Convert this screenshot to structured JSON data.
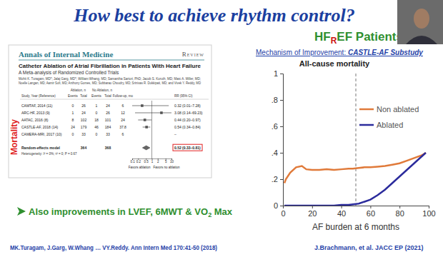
{
  "slide": {
    "title": "How best to achieve rhythm control?",
    "subtitle_parts": [
      "HF",
      "R",
      "EF Patients"
    ],
    "article": {
      "journal": "Annals of Internal Medicine",
      "section": "Review",
      "title": "Catheter Ablation of Atrial Fibrillation in Patients With Heart Failure",
      "subtitle": "A Meta-analysis of Randomized Controlled Trials",
      "authors": [
        "Mohit K. Turagam, MD*; Jalaj Garg, MD*; William Whang, MD; Samantha Sartori, PhD; Jacob S. Koruth, MD; Marc A. Miller, MD;",
        "Noelle Langan, MD; Aamir Sofi, MD; Anthony Gomes, MD; Subbarao Choudry, MD; Srinivas R. Dukkipati, MD; and Vivek Y. Reddy, MD"
      ]
    },
    "bullet_parts": [
      "Also improvements in LVEF, 6MWT & VO",
      "2",
      " Max"
    ],
    "citations": [
      "MK.Turagam, J.Garg, W.Whang … VY.Reddy. Ann Intern Med 170:41-50 (2018)",
      "J.Brachmann, et al. JACC EP (2021)"
    ]
  },
  "chart_data": [
    {
      "type": "forest",
      "side_label": "Mortality",
      "header_top": [
        "Ablation, n",
        "No Ablation, n"
      ],
      "header_sub": [
        "Study, Year (Reference)",
        "Events",
        "Total",
        "Events",
        "Total",
        "Follow-up, mo",
        "RR (95% CI)"
      ],
      "categories": [
        "CAMTAF, 2014 (11)",
        "ARC-HF, 2013 (9)",
        "AATAC, 2016 (8)",
        "CASTLE-AF, 2018 (14)",
        "CAMERA-MRI, 2017 (10)"
      ],
      "values": [
        0.32,
        3.08,
        0.44,
        0.54,
        null
      ],
      "ci_low": [
        0.01,
        0.14,
        0.2,
        0.34,
        null
      ],
      "ci_high": [
        7.28,
        69.23,
        0.97,
        0.84,
        null
      ],
      "rows": [
        [
          "0",
          "26",
          "1",
          "24",
          "6",
          "0.32 (0.01–7.28)"
        ],
        [
          "1",
          "24",
          "0",
          "26",
          "12",
          "3.08 (0.14–69.23)"
        ],
        [
          "8",
          "102",
          "18",
          "101",
          "24",
          "0.44 (0.20–0.97)"
        ],
        [
          "24",
          "179",
          "46",
          "184",
          "37.8",
          "0.54 (0.34–0.84)"
        ],
        [
          "0",
          "33",
          "0",
          "33",
          "6",
          "–"
        ]
      ],
      "pooled": {
        "label": "Random-effects model",
        "value": 0.52,
        "ci_low": 0.33,
        "ci_high": 0.81,
        "row": [
          null,
          "364",
          null,
          "368",
          null,
          "0.52 (0.33–0.81)"
        ]
      },
      "heterogeneity": "Heterogeneity: I² = 0%; τ² = 0; P = 0.67",
      "log": "x",
      "xlim": [
        0.1,
        10
      ],
      "xticks": [
        0.1,
        0.2,
        0.5,
        1,
        2,
        5,
        10
      ],
      "reference_x": 1,
      "x_labels": [
        "Favors ablation",
        "Favors no ablation"
      ]
    },
    {
      "type": "line",
      "heading_parts": [
        "Mechanism of Improvement: ",
        "CASTLE-AF Substudy"
      ],
      "title": "All-cause mortality",
      "x_label": "AF burden at 6 months",
      "x": [
        1,
        2,
        5,
        9,
        13,
        16,
        20,
        25,
        30,
        35,
        40,
        45,
        48,
        52,
        56,
        60,
        65,
        70,
        75,
        80,
        85,
        90,
        95,
        98
      ],
      "series": [
        {
          "name": "Non ablated",
          "color": "#e07a3a",
          "values": [
            0.17,
            0.2,
            0.25,
            0.29,
            0.3,
            0.275,
            0.27,
            0.27,
            0.275,
            0.27,
            0.275,
            0.28,
            0.28,
            0.285,
            0.29,
            0.29,
            0.295,
            0.3,
            0.31,
            0.32,
            0.34,
            0.36,
            0.38,
            0.4
          ]
        },
        {
          "name": "Ablated",
          "color": "#2b2b9c",
          "values": [
            0,
            0,
            0,
            0,
            0,
            0,
            0,
            0,
            0,
            0,
            0.005,
            0.005,
            0.01,
            0.015,
            0.03,
            0.045,
            0.08,
            0.12,
            0.17,
            0.22,
            0.27,
            0.32,
            0.37,
            0.4
          ]
        }
      ],
      "xlim": [
        0,
        100
      ],
      "xticks": [
        0,
        20,
        40,
        60,
        80,
        100
      ],
      "ylim": [
        0,
        1
      ],
      "yticks": [
        0,
        {
          "value": 0.2,
          "label": ".2"
        },
        {
          "value": 0.4,
          "label": ".4"
        },
        {
          "value": 0.6,
          "label": ".6"
        },
        {
          "value": 0.8,
          "label": ".8"
        },
        1
      ],
      "reference_x": 50,
      "legend": "top-right"
    }
  ]
}
